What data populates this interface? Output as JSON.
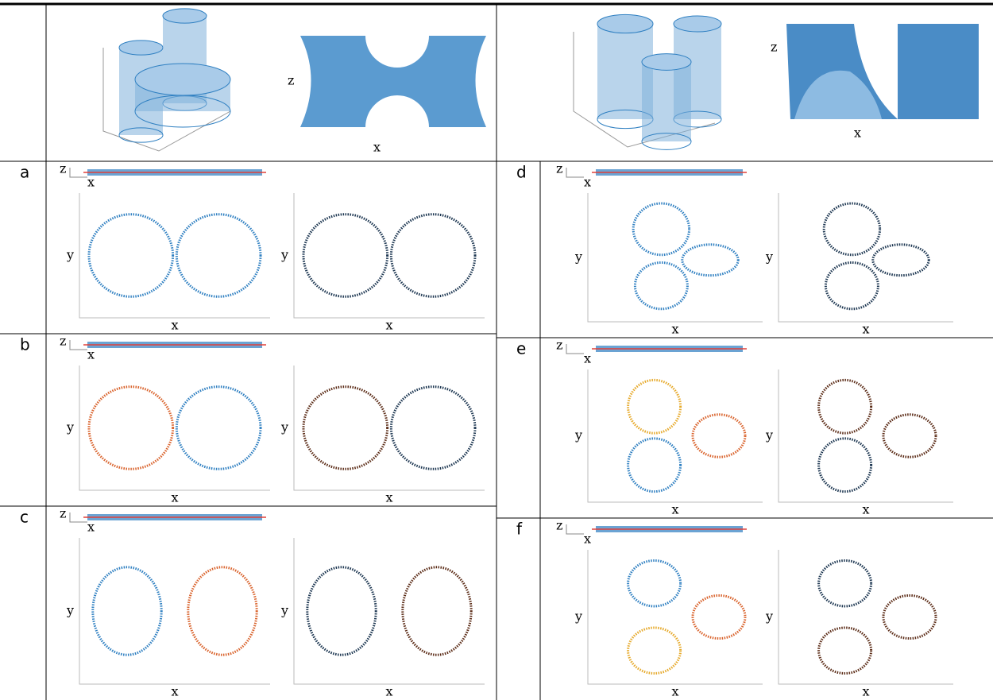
{
  "panels": [
    "a",
    "b",
    "c",
    "d",
    "e",
    "f"
  ],
  "axis_labels": {
    "x": "x",
    "y": "y",
    "z": "z"
  }
}
